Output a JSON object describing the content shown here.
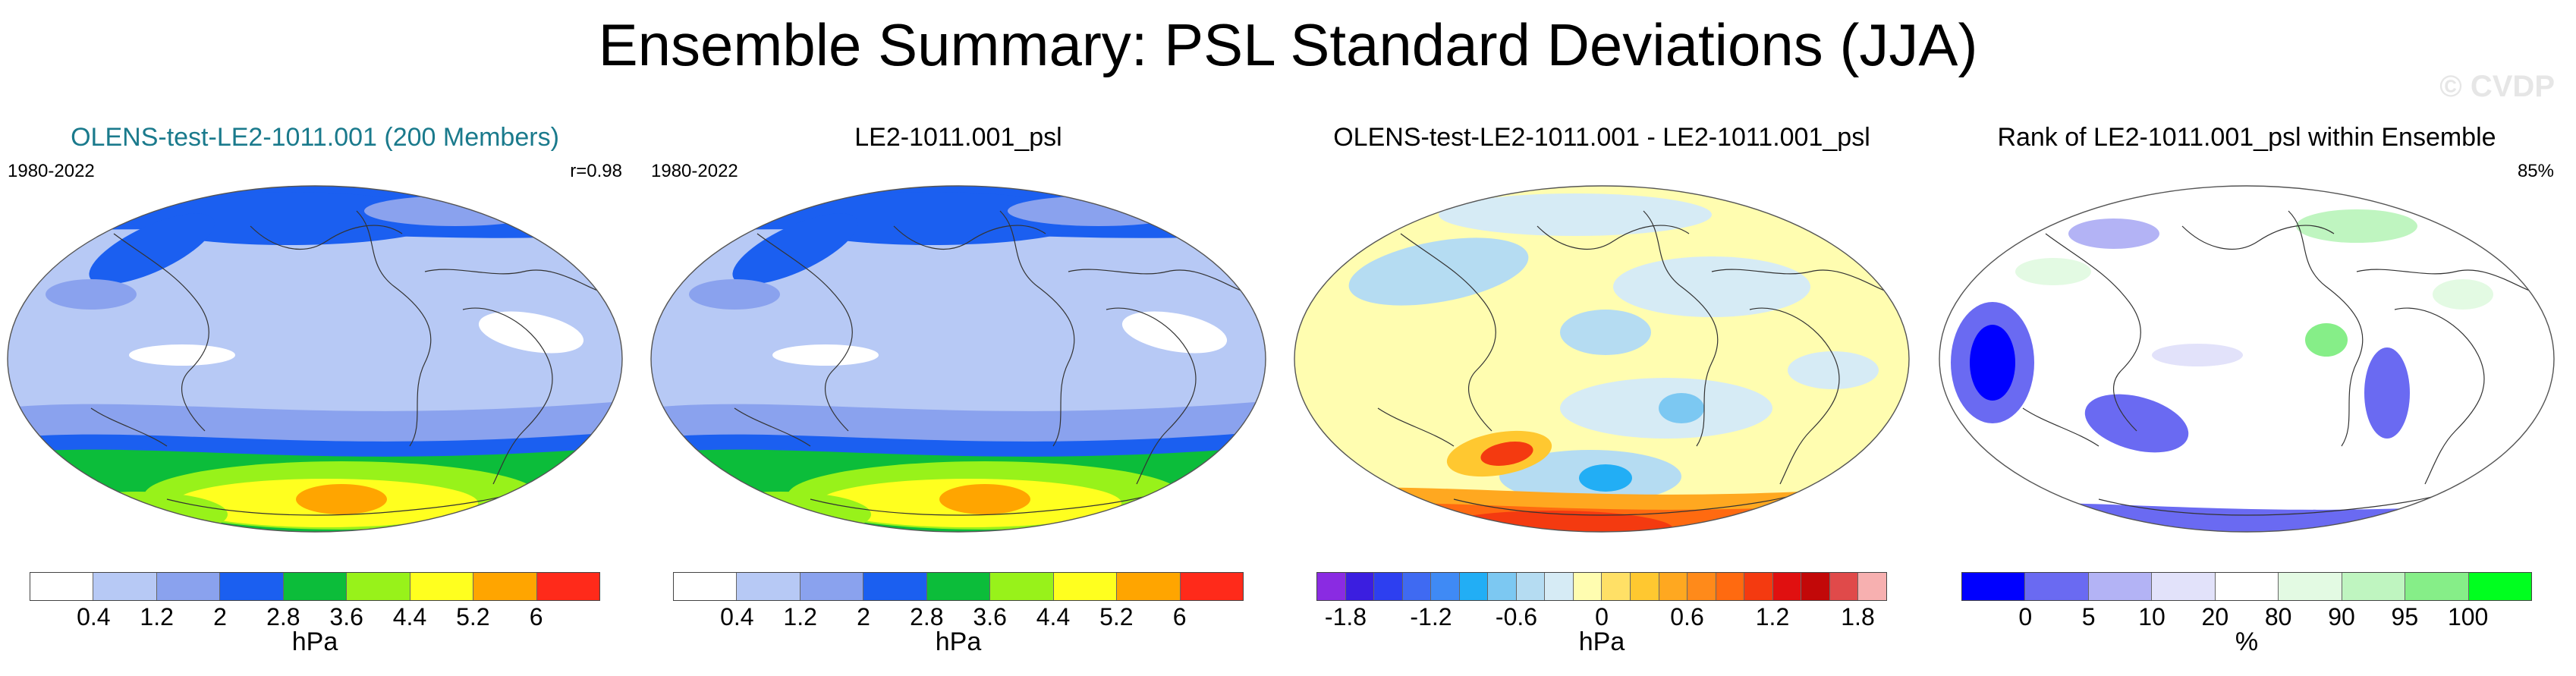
{
  "title": "Ensemble Summary: PSL Standard Deviations (JJA)",
  "watermark": "© CVDP",
  "panels": [
    {
      "title": "OLENS-test-LE2-1011.001 (200 Members)",
      "title_color": "#1a7a8c",
      "left_label": "1980-2022",
      "right_label": "r=0.98",
      "map_type": "std",
      "colorbar": {
        "colors": [
          "#ffffff",
          "#b7c9f5",
          "#8aa2ee",
          "#1b5ff0",
          "#0cbd3a",
          "#98f21a",
          "#ffff1f",
          "#ffa500",
          "#ff2a1a"
        ],
        "ticks": [
          "0.4",
          "1.2",
          "2",
          "2.8",
          "3.6",
          "4.4",
          "5.2",
          "6"
        ],
        "unit": "hPa"
      }
    },
    {
      "title": "LE2-1011.001_psl",
      "title_color": "#000000",
      "left_label": "1980-2022",
      "right_label": "",
      "map_type": "std",
      "colorbar": {
        "colors": [
          "#ffffff",
          "#b7c9f5",
          "#8aa2ee",
          "#1b5ff0",
          "#0cbd3a",
          "#98f21a",
          "#ffff1f",
          "#ffa500",
          "#ff2a1a"
        ],
        "ticks": [
          "0.4",
          "1.2",
          "2",
          "2.8",
          "3.6",
          "4.4",
          "5.2",
          "6"
        ],
        "unit": "hPa"
      }
    },
    {
      "title": "OLENS-test-LE2-1011.001 - LE2-1011.001_psl",
      "title_color": "#000000",
      "left_label": "",
      "right_label": "",
      "map_type": "diff",
      "colorbar": {
        "colors": [
          "#8a2be2",
          "#3b1ee0",
          "#2d3ff0",
          "#3f6af2",
          "#3f8af5",
          "#22aef5",
          "#7cc8f2",
          "#b5dcf2",
          "#d6ebf5",
          "#fffdb0",
          "#ffe066",
          "#ffc830",
          "#ffa820",
          "#ff8a1a",
          "#ff6a10",
          "#f43a10",
          "#e01010",
          "#c20808",
          "#e04a4a",
          "#f7b0b0"
        ],
        "ticks": [
          "-1.8",
          "-1.2",
          "-0.6",
          "0",
          "0.6",
          "1.2",
          "1.8"
        ],
        "unit": "hPa"
      }
    },
    {
      "title": "Rank of LE2-1011.001_psl within Ensemble",
      "title_color": "#000000",
      "left_label": "",
      "right_label": "85%",
      "map_type": "rank",
      "colorbar": {
        "colors": [
          "#0000ff",
          "#6a6af2",
          "#b3b3f5",
          "#e2e2fa",
          "#ffffff",
          "#e3fae3",
          "#bff5c0",
          "#86ee88",
          "#00ff1f"
        ],
        "ticks": [
          "0",
          "5",
          "10",
          "20",
          "80",
          "90",
          "95",
          "100"
        ],
        "unit": "%"
      }
    }
  ]
}
